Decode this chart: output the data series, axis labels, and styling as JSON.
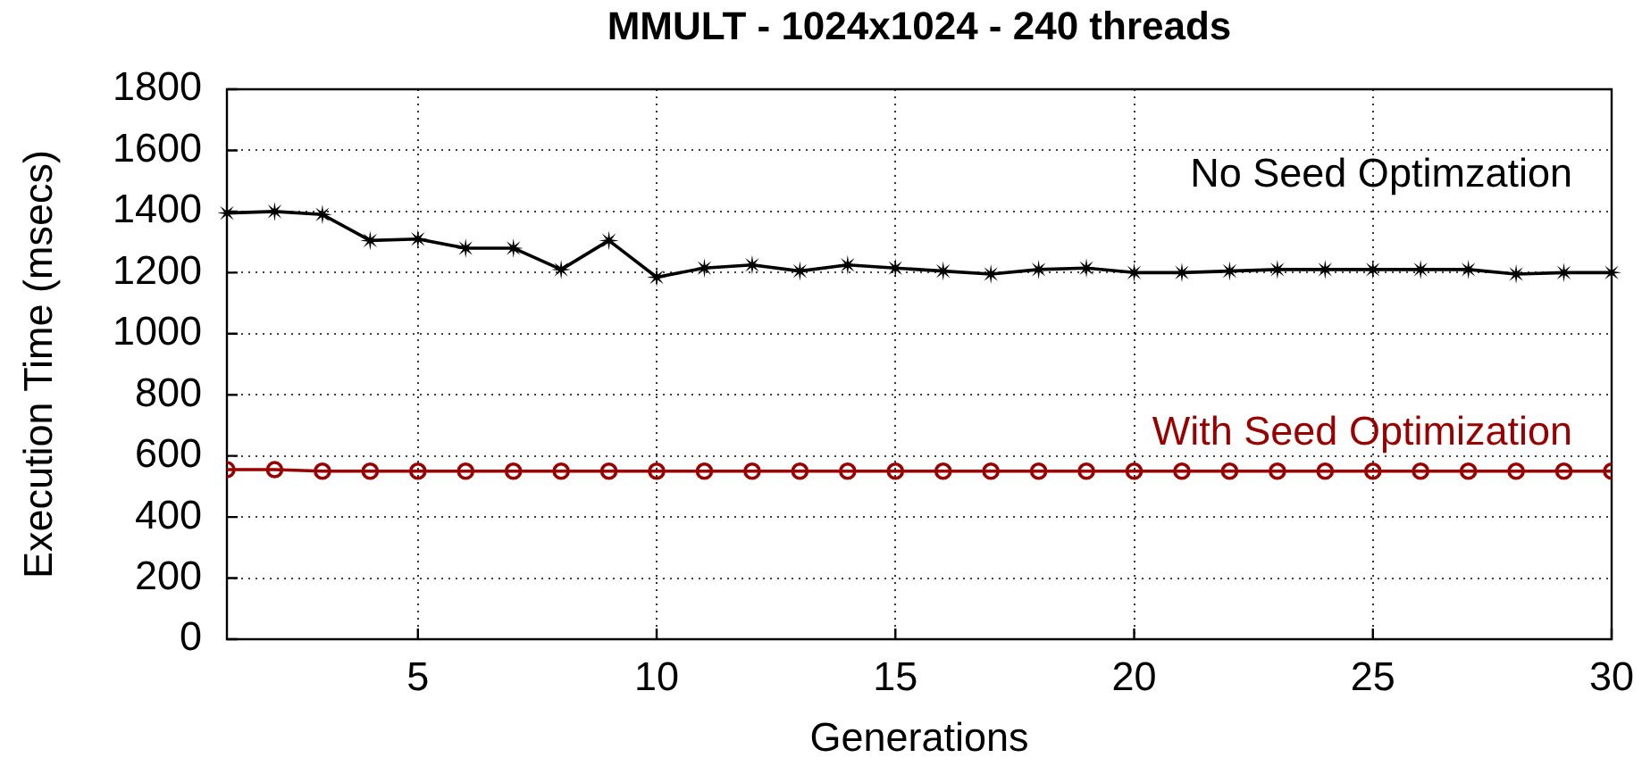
{
  "chart_data": {
    "type": "line",
    "title": "MMULT - 1024x1024 - 240 threads",
    "xlabel": "Generations",
    "ylabel": "Execution Time (msecs)",
    "x": [
      1,
      2,
      3,
      4,
      5,
      6,
      7,
      8,
      9,
      10,
      11,
      12,
      13,
      14,
      15,
      16,
      17,
      18,
      19,
      20,
      21,
      22,
      23,
      24,
      25,
      26,
      27,
      28,
      29,
      30
    ],
    "series": [
      {
        "name": "No Seed Optimzation",
        "color": "#000000",
        "marker": "star",
        "values": [
          1395,
          1400,
          1390,
          1305,
          1310,
          1280,
          1280,
          1210,
          1305,
          1185,
          1215,
          1225,
          1205,
          1225,
          1215,
          1205,
          1195,
          1210,
          1215,
          1200,
          1200,
          1205,
          1210,
          1210,
          1210,
          1210,
          1210,
          1195,
          1200,
          1200
        ]
      },
      {
        "name": "With Seed Optimization",
        "color": "#990000",
        "marker": "circle",
        "values": [
          555,
          555,
          550,
          550,
          550,
          550,
          550,
          550,
          550,
          550,
          550,
          550,
          550,
          550,
          550,
          550,
          550,
          550,
          550,
          550,
          550,
          550,
          550,
          550,
          550,
          550,
          550,
          550,
          550,
          550
        ]
      }
    ],
    "xlim": [
      1,
      30
    ],
    "xticks": [
      5,
      10,
      15,
      20,
      25,
      30
    ],
    "ylim": [
      0,
      1800
    ],
    "yticks": [
      0,
      200,
      400,
      600,
      800,
      1000,
      1200,
      1400,
      1600,
      1800
    ],
    "grid": true,
    "line_style": "solid"
  }
}
